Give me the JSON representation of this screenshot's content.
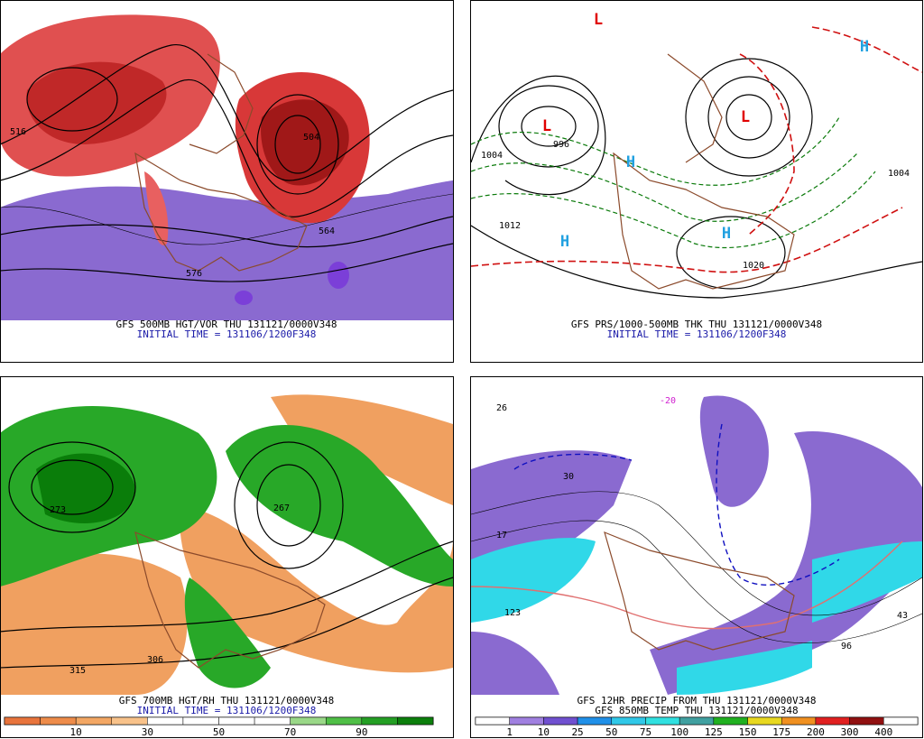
{
  "panels": [
    {
      "caption": "GFS 500MB HGT/VOR THU 131121/0000V348",
      "initial_time": "INITIAL TIME = 131106/1200F348",
      "map_labels": [
        "516",
        "504",
        "576",
        "564"
      ]
    },
    {
      "caption": "GFS PRS/1000-500MB THK THU 131121/0000V348",
      "initial_time": "INITIAL TIME = 131106/1200F348",
      "map_labels": [
        "L",
        "L",
        "L",
        "H",
        "H",
        "H",
        "H",
        "996",
        "1004",
        "1012",
        "1020",
        "1004"
      ]
    },
    {
      "caption": "GFS 700MB HGT/RH THU 131121/0000V348",
      "initial_time": "INITIAL TIME = 131106/1200F348",
      "map_labels": [
        "273",
        "267",
        "315",
        "306"
      ],
      "colorbar": {
        "labels": [
          10,
          30,
          50,
          70,
          90
        ],
        "colors": [
          "#e8743c",
          "#ee8c4a",
          "#f3a764",
          "#f8c28a",
          "#ffffff",
          "#ffffff",
          "#ffffff",
          "#ffffff",
          "#9ad888",
          "#4fbf46",
          "#249f24",
          "#0c7f0c"
        ]
      }
    },
    {
      "caption": "GFS 12HR PRECIP FROM THU 131121/0000V348",
      "caption2": "GFS 850MB TEMP THU 131121/0000V348",
      "map_labels": [
        "26",
        "30",
        "17",
        "123",
        "96",
        "43",
        "-20"
      ],
      "colorbar": {
        "labels": [
          1,
          10,
          25,
          50,
          75,
          100,
          125,
          150,
          175,
          200,
          300,
          400
        ],
        "colors": [
          "#ffffff",
          "#a080e0",
          "#7050d0",
          "#2090e8",
          "#30c8e8",
          "#30e0e0",
          "#40a0a0",
          "#20b020",
          "#e8d820",
          "#f09020",
          "#e02020",
          "#901010",
          "#ffffff"
        ]
      }
    }
  ]
}
